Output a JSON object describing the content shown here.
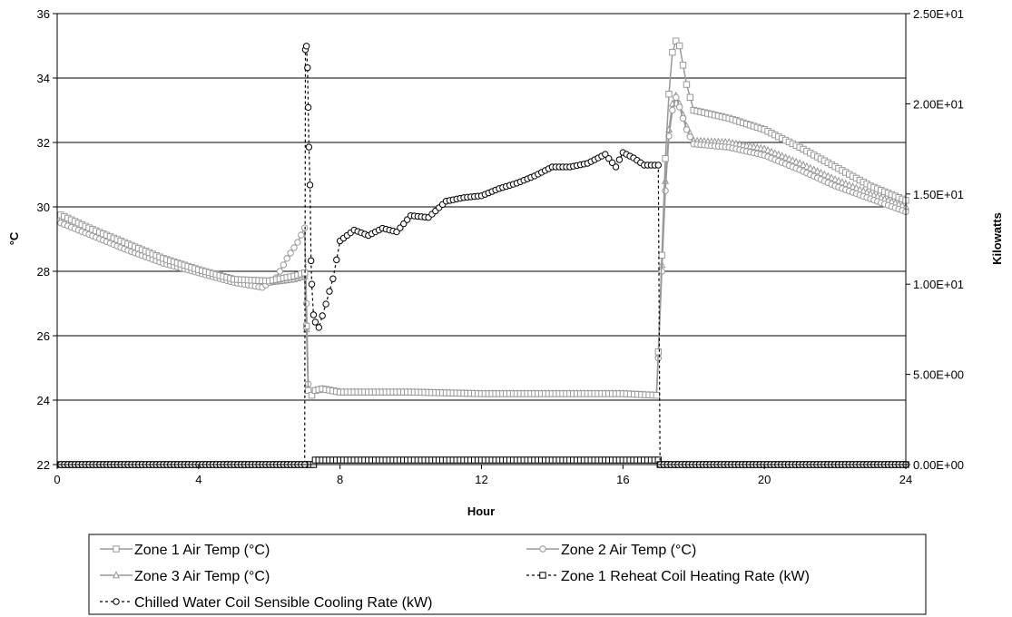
{
  "chart_data": {
    "type": "line",
    "xlabel": "Hour",
    "ylabel": "°C",
    "y2label": "Kilowatts",
    "xlim": [
      0,
      24
    ],
    "ylim": [
      22,
      36
    ],
    "y2lim": [
      0,
      25
    ],
    "x_ticks": [
      "0",
      "4",
      "8",
      "12",
      "16",
      "20",
      "24"
    ],
    "y_ticks": [
      "22",
      "24",
      "26",
      "28",
      "30",
      "32",
      "34",
      "36"
    ],
    "y2_ticks": [
      "0.00E+00",
      "5.00E+00",
      "1.00E+01",
      "1.50E+01",
      "2.00E+01",
      "2.50E+01"
    ],
    "grid": "horizontal",
    "legend_position": "bottom",
    "colors": {
      "gray": "#999999",
      "black": "#000000"
    },
    "series": [
      {
        "name": "Zone 1 Air Temp (°C)",
        "axis": "left",
        "marker": "square",
        "points": [
          [
            0.1,
            29.75
          ],
          [
            1,
            29.3
          ],
          [
            2,
            28.85
          ],
          [
            3,
            28.4
          ],
          [
            4,
            28.05
          ],
          [
            5,
            27.75
          ],
          [
            6,
            27.7
          ],
          [
            6.7,
            27.85
          ],
          [
            7.0,
            27.95
          ],
          [
            7.05,
            26.3
          ],
          [
            7.1,
            24.3
          ],
          [
            7.2,
            24.15
          ],
          [
            7.3,
            24.3
          ],
          [
            7.5,
            24.35
          ],
          [
            8,
            24.25
          ],
          [
            10,
            24.25
          ],
          [
            12,
            24.2
          ],
          [
            14,
            24.2
          ],
          [
            16,
            24.2
          ],
          [
            16.95,
            24.15
          ],
          [
            17.0,
            25.5
          ],
          [
            17.1,
            28.5
          ],
          [
            17.2,
            31.5
          ],
          [
            17.3,
            33.5
          ],
          [
            17.4,
            34.8
          ],
          [
            17.5,
            35.15
          ],
          [
            17.6,
            35.0
          ],
          [
            17.7,
            34.4
          ],
          [
            17.8,
            33.8
          ],
          [
            18,
            33.0
          ],
          [
            19,
            32.75
          ],
          [
            20,
            32.4
          ],
          [
            21,
            31.85
          ],
          [
            22,
            31.25
          ],
          [
            23,
            30.65
          ],
          [
            24,
            30.2
          ]
        ]
      },
      {
        "name": "Zone 2 Air Temp (°C)",
        "axis": "left",
        "marker": "circle",
        "points": [
          [
            0.1,
            29.5
          ],
          [
            1,
            29.1
          ],
          [
            2,
            28.65
          ],
          [
            3,
            28.25
          ],
          [
            4,
            27.95
          ],
          [
            5,
            27.65
          ],
          [
            5.8,
            27.5
          ],
          [
            6.2,
            27.8
          ],
          [
            6.5,
            28.4
          ],
          [
            6.8,
            28.9
          ],
          [
            7.0,
            29.35
          ],
          [
            7.05,
            27.0
          ],
          [
            7.1,
            24.5
          ],
          [
            7.2,
            24.15
          ],
          [
            7.3,
            24.3
          ],
          [
            7.5,
            24.35
          ],
          [
            8,
            24.25
          ],
          [
            10,
            24.25
          ],
          [
            12,
            24.2
          ],
          [
            14,
            24.2
          ],
          [
            16,
            24.2
          ],
          [
            16.95,
            24.15
          ],
          [
            17.0,
            25.3
          ],
          [
            17.1,
            28.0
          ],
          [
            17.2,
            30.5
          ],
          [
            17.3,
            32.2
          ],
          [
            17.4,
            33.0
          ],
          [
            17.5,
            33.4
          ],
          [
            17.6,
            33.1
          ],
          [
            17.8,
            32.4
          ],
          [
            18,
            31.95
          ],
          [
            19,
            31.85
          ],
          [
            20,
            31.6
          ],
          [
            21,
            31.15
          ],
          [
            22,
            30.65
          ],
          [
            23,
            30.25
          ],
          [
            24,
            29.85
          ]
        ]
      },
      {
        "name": "Zone 3 Air Temp (°C)",
        "axis": "left",
        "marker": "triangle",
        "points": [
          [
            0.1,
            29.6
          ],
          [
            1,
            29.2
          ],
          [
            2,
            28.75
          ],
          [
            3,
            28.35
          ],
          [
            4,
            28.0
          ],
          [
            5,
            27.7
          ],
          [
            6,
            27.65
          ],
          [
            6.7,
            27.75
          ],
          [
            7.0,
            27.85
          ],
          [
            7.05,
            26.2
          ],
          [
            7.1,
            24.3
          ],
          [
            7.2,
            24.15
          ],
          [
            7.3,
            24.3
          ],
          [
            7.5,
            24.35
          ],
          [
            8,
            24.25
          ],
          [
            10,
            24.25
          ],
          [
            12,
            24.2
          ],
          [
            14,
            24.2
          ],
          [
            16,
            24.2
          ],
          [
            16.95,
            24.15
          ],
          [
            17.0,
            25.4
          ],
          [
            17.1,
            28.2
          ],
          [
            17.2,
            30.8
          ],
          [
            17.3,
            32.4
          ],
          [
            17.4,
            33.2
          ],
          [
            17.5,
            33.45
          ],
          [
            17.6,
            33.2
          ],
          [
            17.8,
            32.5
          ],
          [
            18,
            32.05
          ],
          [
            19,
            32.0
          ],
          [
            20,
            31.8
          ],
          [
            21,
            31.35
          ],
          [
            22,
            30.85
          ],
          [
            23,
            30.4
          ],
          [
            24,
            30.0
          ]
        ]
      },
      {
        "name": "Zone 1 Reheat Coil Heating Rate (kW)",
        "axis": "right",
        "marker": "square",
        "dashed": true,
        "points": [
          [
            0.1,
            0
          ],
          [
            7.0,
            0
          ],
          [
            7.25,
            0
          ],
          [
            7.3,
            0.25
          ],
          [
            17.0,
            0.25
          ],
          [
            17.05,
            0
          ],
          [
            24,
            0
          ]
        ]
      },
      {
        "name": "Chilled Water Coil Sensible Cooling Rate (kW)",
        "axis": "right",
        "marker": "circle",
        "dashed": true,
        "points": [
          [
            0.1,
            0
          ],
          [
            6.9,
            0
          ],
          [
            7.0,
            0
          ],
          [
            7.02,
            23.0
          ],
          [
            7.05,
            23.2
          ],
          [
            7.08,
            22.0
          ],
          [
            7.1,
            19.8
          ],
          [
            7.12,
            17.6
          ],
          [
            7.15,
            15.5
          ],
          [
            7.18,
            11.3
          ],
          [
            7.2,
            10.0
          ],
          [
            7.25,
            8.3
          ],
          [
            7.3,
            7.9
          ],
          [
            7.4,
            7.6
          ],
          [
            7.6,
            8.9
          ],
          [
            7.8,
            10.3
          ],
          [
            8,
            12.4
          ],
          [
            8.4,
            13.0
          ],
          [
            8.8,
            12.7
          ],
          [
            9.2,
            13.1
          ],
          [
            9.6,
            12.9
          ],
          [
            10,
            13.8
          ],
          [
            10.5,
            13.7
          ],
          [
            11,
            14.6
          ],
          [
            11.5,
            14.8
          ],
          [
            12,
            14.9
          ],
          [
            12.5,
            15.3
          ],
          [
            13,
            15.6
          ],
          [
            13.5,
            16.0
          ],
          [
            14,
            16.5
          ],
          [
            14.5,
            16.5
          ],
          [
            15,
            16.7
          ],
          [
            15.5,
            17.2
          ],
          [
            15.8,
            16.5
          ],
          [
            16,
            17.3
          ],
          [
            16.3,
            17.0
          ],
          [
            16.6,
            16.6
          ],
          [
            17,
            16.6
          ],
          [
            17.05,
            0
          ],
          [
            24,
            0
          ]
        ]
      }
    ]
  }
}
